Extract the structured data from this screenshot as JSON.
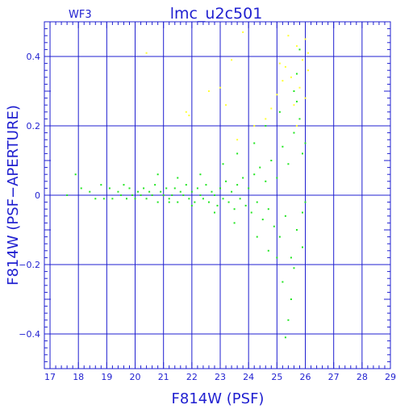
{
  "chart_data": {
    "type": "scatter",
    "title": "lmc_u2c501",
    "tag": "WF3",
    "xlabel": "F814W (PSF)",
    "ylabel": "F814W (PSF−APERTURE)",
    "xlim": [
      16.8,
      29.0
    ],
    "ylim": [
      -0.5,
      0.5
    ],
    "xticks": [
      17,
      18,
      19,
      20,
      21,
      22,
      23,
      24,
      25,
      26,
      27,
      28,
      29
    ],
    "yticks": [
      -0.4,
      -0.2,
      0,
      0.2,
      0.4
    ],
    "ytick_labels": [
      "−0.4",
      "−0.2",
      "0",
      "0.2",
      "0.4"
    ],
    "grid": true,
    "legend": "none",
    "colors": {
      "axes": "#1f1fd0",
      "grid": "#1f1fd0",
      "good": "#22e622",
      "flagged": "#ffff33"
    },
    "series": [
      {
        "color_key": "good",
        "points": [
          [
            17.6,
            0.0
          ],
          [
            17.9,
            0.06
          ],
          [
            18.1,
            0.02
          ],
          [
            18.4,
            0.01
          ],
          [
            18.6,
            -0.01
          ],
          [
            18.8,
            0.03
          ],
          [
            18.9,
            -0.01
          ],
          [
            19.1,
            0.02
          ],
          [
            19.2,
            -0.01
          ],
          [
            19.4,
            0.01
          ],
          [
            19.5,
            0.0
          ],
          [
            19.6,
            0.03
          ],
          [
            19.7,
            -0.01
          ],
          [
            19.8,
            0.02
          ],
          [
            19.9,
            0.0
          ],
          [
            20.0,
            -0.01
          ],
          [
            20.1,
            0.01
          ],
          [
            20.2,
            0.0
          ],
          [
            20.3,
            0.02
          ],
          [
            20.4,
            -0.01
          ],
          [
            20.5,
            0.01
          ],
          [
            20.6,
            0.0
          ],
          [
            20.7,
            0.03
          ],
          [
            20.8,
            -0.02
          ],
          [
            20.9,
            0.01
          ],
          [
            21.0,
            0.0
          ],
          [
            21.1,
            0.02
          ],
          [
            21.2,
            -0.01
          ],
          [
            21.3,
            0.0
          ],
          [
            21.4,
            0.02
          ],
          [
            21.5,
            -0.02
          ],
          [
            21.6,
            0.01
          ],
          [
            21.7,
            0.0
          ],
          [
            21.8,
            0.03
          ],
          [
            21.9,
            -0.01
          ],
          [
            22.0,
            0.01
          ],
          [
            22.1,
            -0.02
          ],
          [
            22.2,
            0.02
          ],
          [
            22.3,
            0.0
          ],
          [
            22.4,
            -0.01
          ],
          [
            22.5,
            0.03
          ],
          [
            22.6,
            -0.02
          ],
          [
            22.7,
            0.01
          ],
          [
            22.8,
            0.0
          ],
          [
            22.9,
            -0.03
          ],
          [
            23.0,
            0.02
          ],
          [
            23.1,
            -0.01
          ],
          [
            23.2,
            0.04
          ],
          [
            23.3,
            -0.02
          ],
          [
            23.4,
            0.01
          ],
          [
            23.5,
            -0.04
          ],
          [
            23.6,
            0.03
          ],
          [
            23.7,
            -0.01
          ],
          [
            23.8,
            0.05
          ],
          [
            23.9,
            -0.03
          ],
          [
            24.0,
            0.02
          ],
          [
            24.1,
            -0.05
          ],
          [
            24.2,
            0.06
          ],
          [
            24.3,
            -0.02
          ],
          [
            24.4,
            0.08
          ],
          [
            24.5,
            -0.07
          ],
          [
            24.6,
            0.04
          ],
          [
            24.7,
            -0.04
          ],
          [
            24.8,
            0.1
          ],
          [
            24.9,
            -0.09
          ],
          [
            25.0,
            0.05
          ],
          [
            25.1,
            -0.12
          ],
          [
            25.2,
            0.14
          ],
          [
            25.3,
            -0.06
          ],
          [
            25.4,
            0.09
          ],
          [
            25.5,
            -0.18
          ],
          [
            25.6,
            0.18
          ],
          [
            25.7,
            -0.1
          ],
          [
            25.8,
            0.22
          ],
          [
            25.9,
            -0.05
          ],
          [
            25.5,
            -0.3
          ],
          [
            25.4,
            -0.36
          ],
          [
            25.3,
            -0.41
          ],
          [
            25.6,
            0.3
          ],
          [
            25.7,
            0.35
          ],
          [
            25.8,
            0.42
          ],
          [
            25.9,
            0.12
          ],
          [
            25.2,
            -0.25
          ],
          [
            24.7,
            -0.16
          ],
          [
            20.8,
            0.06
          ],
          [
            21.5,
            0.05
          ],
          [
            22.3,
            0.06
          ],
          [
            23.1,
            0.09
          ],
          [
            23.6,
            0.12
          ],
          [
            24.2,
            0.15
          ],
          [
            24.6,
            0.2
          ],
          [
            25.1,
            0.24
          ],
          [
            25.7,
            0.27
          ],
          [
            26.0,
            0.15
          ],
          [
            26.0,
            -0.02
          ],
          [
            25.9,
            -0.15
          ],
          [
            25.6,
            -0.21
          ],
          [
            25.0,
            -0.18
          ],
          [
            24.3,
            -0.12
          ],
          [
            23.5,
            -0.08
          ],
          [
            22.8,
            -0.05
          ],
          [
            22.0,
            -0.03
          ],
          [
            21.2,
            -0.02
          ]
        ]
      },
      {
        "color_key": "flagged",
        "points": [
          [
            20.4,
            0.41
          ],
          [
            21.8,
            0.24
          ],
          [
            21.9,
            0.23
          ],
          [
            22.6,
            0.3
          ],
          [
            23.0,
            0.31
          ],
          [
            23.2,
            0.26
          ],
          [
            23.4,
            0.39
          ],
          [
            23.6,
            0.16
          ],
          [
            23.8,
            0.47
          ],
          [
            24.2,
            0.2
          ],
          [
            24.6,
            0.22
          ],
          [
            24.8,
            0.25
          ],
          [
            25.0,
            0.29
          ],
          [
            25.2,
            0.33
          ],
          [
            25.3,
            0.37
          ],
          [
            25.5,
            0.34
          ],
          [
            25.6,
            0.26
          ],
          [
            25.7,
            0.43
          ],
          [
            25.8,
            0.31
          ],
          [
            25.9,
            0.39
          ],
          [
            26.0,
            0.45
          ],
          [
            26.1,
            0.41
          ],
          [
            26.0,
            0.28
          ],
          [
            25.4,
            0.46
          ],
          [
            25.1,
            0.38
          ],
          [
            25.7,
            0.2
          ],
          [
            26.1,
            0.36
          ]
        ]
      }
    ]
  }
}
